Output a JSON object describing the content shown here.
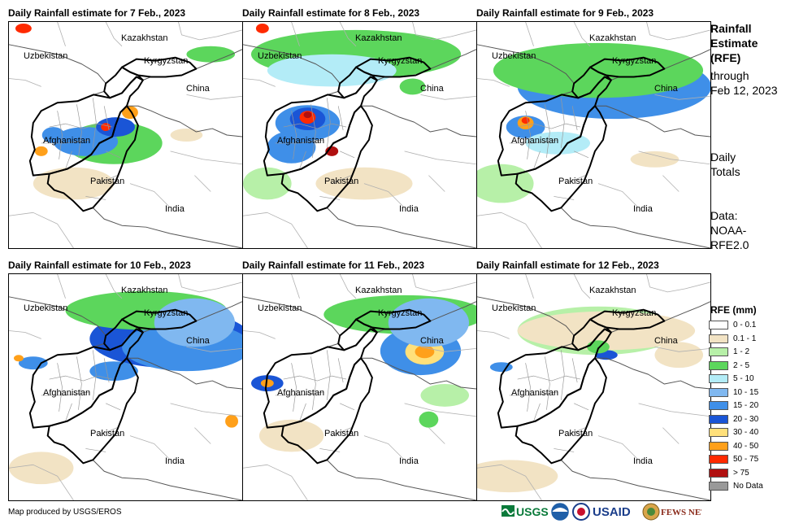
{
  "panels": [
    {
      "title": "Daily Rainfall estimate for 7 Feb., 2023",
      "labels": {
        "kazakhstan": "Kazakhstan",
        "uzbekistan": "Uzbekistan",
        "kyrgyzstan": "Kyrgyzstan",
        "china": "China",
        "afghanistan": "Afghanistan",
        "pakistan": "Pakistan",
        "india": "India"
      }
    },
    {
      "title": "Daily Rainfall estimate for 8 Feb., 2023",
      "labels": {
        "kazakhstan": "Kazakhstan",
        "uzbekistan": "Uzbekistan",
        "kyrgyzstan": "Kyrgyzstan",
        "china": "China",
        "afghanistan": "Afghanistan",
        "pakistan": "Pakistan",
        "india": "India"
      }
    },
    {
      "title": "Daily Rainfall estimate for 9 Feb., 2023",
      "labels": {
        "kazakhstan": "Kazakhstan",
        "uzbekistan": "Uzbekistan",
        "kyrgyzstan": "Kyrgyzstan",
        "china": "China",
        "afghanistan": "Afghanistan",
        "pakistan": "Pakistan",
        "india": "India"
      }
    },
    {
      "title": "Daily Rainfall estimate for 10 Feb., 2023",
      "labels": {
        "kazakhstan": "Kazakhstan",
        "uzbekistan": "Uzbekistan",
        "kyrgyzstan": "Kyrgyzstan",
        "china": "China",
        "afghanistan": "Afghanistan",
        "pakistan": "Pakistan",
        "india": "India"
      }
    },
    {
      "title": "Daily Rainfall estimate for 11 Feb., 2023",
      "labels": {
        "kazakhstan": "Kazakhstan",
        "uzbekistan": "Uzbekistan",
        "kyrgyzstan": "Kyrgyzstan",
        "china": "China",
        "afghanistan": "Afghanistan",
        "pakistan": "Pakistan",
        "india": "India"
      }
    },
    {
      "title": "Daily Rainfall estimate for 12 Feb., 2023",
      "labels": {
        "kazakhstan": "Kazakhstan",
        "uzbekistan": "Uzbekistan",
        "kyrgyzstan": "Kyrgyzstan",
        "china": "China",
        "afghanistan": "Afghanistan",
        "pakistan": "Pakistan",
        "india": "India"
      }
    }
  ],
  "side": {
    "title_line1": "Rainfall",
    "title_line2": "Estimate",
    "title_line3": "(RFE)",
    "through": "through",
    "date": "Feb 12, 2023",
    "daily": "Daily",
    "totals": "Totals",
    "data": "Data:",
    "source_a": "NOAA-",
    "source_b": "RFE2.0"
  },
  "legend": {
    "title": "RFE (mm)",
    "items": [
      {
        "label": "0 - 0.1",
        "color": "#ffffff"
      },
      {
        "label": "0.1 - 1",
        "color": "#f2e3c4"
      },
      {
        "label": "1 - 2",
        "color": "#b7f0a8"
      },
      {
        "label": "2 - 5",
        "color": "#5cd65c"
      },
      {
        "label": "5 - 10",
        "color": "#b3ecf7"
      },
      {
        "label": "10 - 15",
        "color": "#80b8f0"
      },
      {
        "label": "15 - 20",
        "color": "#3f8fe8"
      },
      {
        "label": "20 - 30",
        "color": "#1a55d6"
      },
      {
        "label": "30 - 40",
        "color": "#ffe07a"
      },
      {
        "label": "40 - 50",
        "color": "#ffa01a"
      },
      {
        "label": "50 - 75",
        "color": "#ff2a00"
      },
      {
        "label": "> 75",
        "color": "#b01010"
      },
      {
        "label": "No Data",
        "color": "#999999"
      }
    ]
  },
  "credit": "Map produced by USGS/EROS",
  "logos": {
    "usgs": "USGS",
    "usaid": "USAID",
    "fewsnet": "FEWS NET"
  }
}
